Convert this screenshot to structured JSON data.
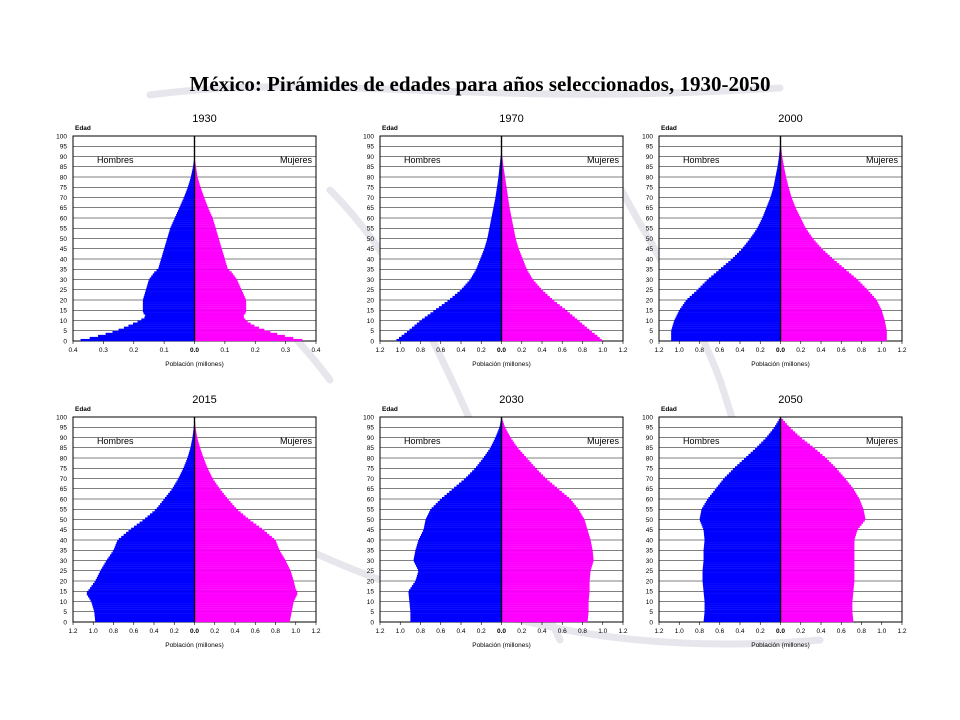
{
  "title": "México: Pirámides de edades para años seleccionados, 1930-2050",
  "colors": {
    "male": "#0000ff",
    "female": "#ff00ff",
    "frame": "#000000",
    "grid": "#000000"
  },
  "chart_data": [
    {
      "type": "pyramid",
      "title": "1930",
      "ylabel": "Edad",
      "xlabel": "Población (millones)",
      "left_label": "Hombres",
      "right_label": "Mujeres",
      "xlim": 0.4,
      "xticks": [
        "0.4",
        "0.3",
        "0.2",
        "0.1",
        "0.0",
        "0.1",
        "0.2",
        "0.3",
        "0.4"
      ],
      "yticks": [
        "0",
        "5",
        "10",
        "15",
        "20",
        "25",
        "30",
        "35",
        "40",
        "45",
        "50",
        "55",
        "60",
        "65",
        "70",
        "75",
        "80",
        "85",
        "90",
        "95",
        "100"
      ],
      "series": [
        {
          "name": "Hombres",
          "ages": [
            0,
            2,
            4,
            6,
            8,
            10,
            12,
            14,
            16,
            18,
            20,
            25,
            30,
            34,
            35,
            40,
            45,
            50,
            55,
            60,
            65,
            70,
            75,
            80,
            85,
            88,
            90
          ],
          "values": [
            0.39,
            0.33,
            0.28,
            0.24,
            0.21,
            0.18,
            0.16,
            0.17,
            0.17,
            0.17,
            0.17,
            0.16,
            0.15,
            0.13,
            0.12,
            0.11,
            0.1,
            0.09,
            0.08,
            0.065,
            0.05,
            0.035,
            0.022,
            0.012,
            0.005,
            0.002,
            0
          ]
        },
        {
          "name": "Mujeres",
          "ages": [
            0,
            2,
            4,
            6,
            8,
            10,
            12,
            14,
            16,
            18,
            20,
            25,
            30,
            34,
            35,
            40,
            45,
            50,
            55,
            60,
            65,
            70,
            75,
            80,
            85,
            88,
            90
          ],
          "values": [
            0.37,
            0.31,
            0.26,
            0.22,
            0.19,
            0.17,
            0.16,
            0.17,
            0.17,
            0.17,
            0.17,
            0.155,
            0.14,
            0.12,
            0.11,
            0.1,
            0.09,
            0.08,
            0.07,
            0.06,
            0.045,
            0.032,
            0.02,
            0.01,
            0.005,
            0.002,
            0
          ]
        }
      ]
    },
    {
      "type": "pyramid",
      "title": "1970",
      "ylabel": "Edad",
      "xlabel": "Población (millones)",
      "left_label": "Hombres",
      "right_label": "Mujeres",
      "xlim": 1.2,
      "xticks": [
        "1.2",
        "1.0",
        "0.8",
        "0.6",
        "0.4",
        "0.2",
        "0.0",
        "0.2",
        "0.4",
        "0.6",
        "0.8",
        "1.0",
        "1.2"
      ],
      "yticks": [
        "0",
        "5",
        "10",
        "15",
        "20",
        "25",
        "30",
        "35",
        "40",
        "45",
        "50",
        "55",
        "60",
        "65",
        "70",
        "75",
        "80",
        "85",
        "90",
        "95",
        "100"
      ],
      "series": [
        {
          "name": "Hombres",
          "ages": [
            0,
            2,
            5,
            10,
            15,
            20,
            25,
            30,
            35,
            40,
            45,
            50,
            55,
            60,
            65,
            70,
            75,
            80,
            85,
            90,
            92
          ],
          "values": [
            1.05,
            1.0,
            0.92,
            0.8,
            0.66,
            0.52,
            0.4,
            0.31,
            0.25,
            0.21,
            0.17,
            0.14,
            0.12,
            0.1,
            0.08,
            0.06,
            0.045,
            0.03,
            0.02,
            0.008,
            0
          ]
        },
        {
          "name": "Mujeres",
          "ages": [
            0,
            2,
            5,
            10,
            15,
            20,
            25,
            30,
            35,
            40,
            45,
            50,
            55,
            60,
            65,
            70,
            75,
            80,
            85,
            90,
            92
          ],
          "values": [
            1.0,
            0.96,
            0.88,
            0.76,
            0.64,
            0.51,
            0.4,
            0.31,
            0.25,
            0.21,
            0.17,
            0.14,
            0.12,
            0.1,
            0.08,
            0.065,
            0.05,
            0.035,
            0.02,
            0.008,
            0
          ]
        }
      ]
    },
    {
      "type": "pyramid",
      "title": "2000",
      "ylabel": "Edad",
      "xlabel": "Población (millones)",
      "left_label": "Hombres",
      "right_label": "Mujeres",
      "xlim": 1.2,
      "xticks": [
        "1.2",
        "1.0",
        "0.8",
        "0.6",
        "0.4",
        "0.2",
        "0.0",
        "0.2",
        "0.4",
        "0.6",
        "0.8",
        "1.0",
        "1.2"
      ],
      "yticks": [
        "0",
        "5",
        "10",
        "15",
        "20",
        "25",
        "30",
        "35",
        "40",
        "45",
        "50",
        "55",
        "60",
        "65",
        "70",
        "75",
        "80",
        "85",
        "90",
        "95",
        "100"
      ],
      "series": [
        {
          "name": "Hombres",
          "ages": [
            0,
            5,
            10,
            15,
            20,
            25,
            30,
            35,
            40,
            45,
            50,
            55,
            60,
            65,
            70,
            75,
            80,
            85,
            90,
            95,
            100
          ],
          "values": [
            1.08,
            1.08,
            1.05,
            1.0,
            0.93,
            0.82,
            0.72,
            0.6,
            0.48,
            0.38,
            0.3,
            0.23,
            0.18,
            0.14,
            0.1,
            0.07,
            0.05,
            0.03,
            0.015,
            0.005,
            0
          ]
        },
        {
          "name": "Mujeres",
          "ages": [
            0,
            5,
            10,
            15,
            20,
            25,
            30,
            35,
            40,
            45,
            50,
            55,
            60,
            65,
            70,
            75,
            80,
            85,
            90,
            95,
            100
          ],
          "values": [
            1.05,
            1.05,
            1.03,
            1.0,
            0.95,
            0.86,
            0.76,
            0.64,
            0.52,
            0.41,
            0.32,
            0.25,
            0.2,
            0.15,
            0.11,
            0.08,
            0.055,
            0.035,
            0.017,
            0.006,
            0
          ]
        }
      ]
    },
    {
      "type": "pyramid",
      "title": "2015",
      "ylabel": "Edad",
      "xlabel": "Población (millones)",
      "left_label": "Hombres",
      "right_label": "Mujeres",
      "xlim": 1.2,
      "xticks": [
        "1.2",
        "1.0",
        "0.8",
        "0.6",
        "0.4",
        "0.2",
        "0.0",
        "0.2",
        "0.4",
        "0.6",
        "0.8",
        "1.0",
        "1.2"
      ],
      "yticks": [
        "0",
        "5",
        "10",
        "15",
        "20",
        "25",
        "30",
        "35",
        "40",
        "45",
        "50",
        "55",
        "60",
        "65",
        "70",
        "75",
        "80",
        "85",
        "90",
        "95",
        "100"
      ],
      "series": [
        {
          "name": "Hombres",
          "ages": [
            0,
            5,
            10,
            14,
            16,
            20,
            25,
            30,
            35,
            40,
            45,
            50,
            55,
            60,
            65,
            70,
            75,
            80,
            85,
            90,
            95,
            100
          ],
          "values": [
            0.98,
            0.99,
            1.02,
            1.07,
            1.04,
            0.98,
            0.93,
            0.87,
            0.8,
            0.76,
            0.64,
            0.5,
            0.38,
            0.3,
            0.22,
            0.16,
            0.11,
            0.07,
            0.04,
            0.02,
            0.007,
            0
          ]
        },
        {
          "name": "Mujeres",
          "ages": [
            0,
            5,
            10,
            14,
            16,
            20,
            25,
            30,
            35,
            40,
            45,
            50,
            55,
            60,
            65,
            70,
            75,
            80,
            85,
            90,
            95,
            100
          ],
          "values": [
            0.94,
            0.96,
            0.98,
            1.02,
            1.0,
            0.98,
            0.95,
            0.9,
            0.84,
            0.8,
            0.68,
            0.54,
            0.42,
            0.33,
            0.25,
            0.18,
            0.13,
            0.09,
            0.055,
            0.027,
            0.01,
            0
          ]
        }
      ]
    },
    {
      "type": "pyramid",
      "title": "2030",
      "ylabel": "Edad",
      "xlabel": "Población (millones)",
      "left_label": "Hombres",
      "right_label": "Mujeres",
      "xlim": 1.2,
      "xticks": [
        "1.2",
        "1.0",
        "0.8",
        "0.6",
        "0.4",
        "0.2",
        "0.0",
        "0.2",
        "0.4",
        "0.6",
        "0.8",
        "1.0",
        "1.2"
      ],
      "yticks": [
        "0",
        "5",
        "10",
        "15",
        "20",
        "25",
        "30",
        "35",
        "40",
        "45",
        "50",
        "55",
        "60",
        "65",
        "70",
        "75",
        "80",
        "85",
        "90",
        "95",
        "100"
      ],
      "series": [
        {
          "name": "Hombres",
          "ages": [
            0,
            5,
            10,
            15,
            20,
            25,
            30,
            35,
            40,
            45,
            50,
            55,
            60,
            65,
            70,
            75,
            80,
            85,
            90,
            95,
            100
          ],
          "values": [
            0.9,
            0.9,
            0.91,
            0.92,
            0.85,
            0.82,
            0.87,
            0.85,
            0.82,
            0.77,
            0.75,
            0.7,
            0.6,
            0.48,
            0.36,
            0.26,
            0.18,
            0.11,
            0.06,
            0.02,
            0
          ]
        },
        {
          "name": "Mujeres",
          "ages": [
            0,
            5,
            10,
            15,
            20,
            25,
            30,
            35,
            40,
            45,
            50,
            55,
            60,
            65,
            70,
            75,
            80,
            85,
            90,
            95,
            100
          ],
          "values": [
            0.85,
            0.86,
            0.86,
            0.87,
            0.87,
            0.88,
            0.91,
            0.9,
            0.88,
            0.85,
            0.82,
            0.76,
            0.68,
            0.56,
            0.44,
            0.34,
            0.25,
            0.16,
            0.09,
            0.035,
            0
          ]
        }
      ]
    },
    {
      "type": "pyramid",
      "title": "2050",
      "ylabel": "Edad",
      "xlabel": "Población (millones)",
      "left_label": "Hombres",
      "right_label": "Mujeres",
      "xlim": 1.2,
      "xticks": [
        "1.2",
        "1.0",
        "0.8",
        "0.6",
        "0.4",
        "0.2",
        "0.0",
        "0.2",
        "0.4",
        "0.6",
        "0.8",
        "1.0",
        "1.2"
      ],
      "yticks": [
        "0",
        "5",
        "10",
        "15",
        "20",
        "25",
        "30",
        "35",
        "40",
        "45",
        "50",
        "55",
        "60",
        "65",
        "70",
        "75",
        "80",
        "85",
        "90",
        "95",
        "100"
      ],
      "series": [
        {
          "name": "Hombres",
          "ages": [
            0,
            5,
            10,
            15,
            20,
            25,
            30,
            35,
            40,
            45,
            50,
            55,
            60,
            65,
            70,
            75,
            80,
            85,
            90,
            95,
            100
          ],
          "values": [
            0.76,
            0.75,
            0.75,
            0.76,
            0.77,
            0.77,
            0.76,
            0.76,
            0.75,
            0.76,
            0.8,
            0.78,
            0.72,
            0.64,
            0.56,
            0.46,
            0.35,
            0.24,
            0.14,
            0.06,
            0
          ]
        },
        {
          "name": "Mujeres",
          "ages": [
            0,
            5,
            10,
            15,
            20,
            25,
            30,
            35,
            40,
            45,
            50,
            55,
            60,
            65,
            70,
            75,
            80,
            85,
            90,
            95,
            100
          ],
          "values": [
            0.72,
            0.71,
            0.71,
            0.72,
            0.73,
            0.73,
            0.73,
            0.73,
            0.73,
            0.76,
            0.84,
            0.82,
            0.78,
            0.72,
            0.64,
            0.55,
            0.45,
            0.33,
            0.2,
            0.09,
            0
          ]
        }
      ]
    }
  ]
}
